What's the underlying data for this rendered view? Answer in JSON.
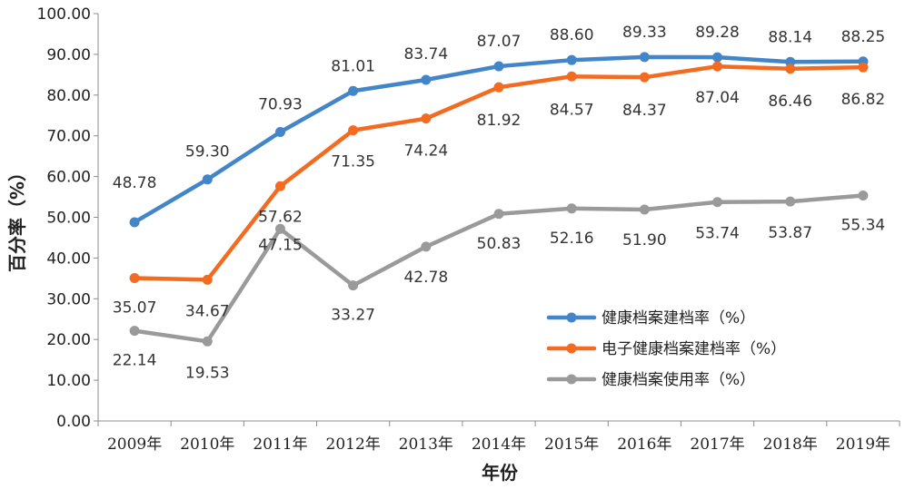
{
  "chart_data": {
    "type": "line",
    "xlabel": "年份",
    "ylabel": "百分率（%）",
    "ylim": [
      0,
      100
    ],
    "yticks": [
      "0.00",
      "10.00",
      "20.00",
      "30.00",
      "40.00",
      "50.00",
      "60.00",
      "70.00",
      "80.00",
      "90.00",
      "100.00"
    ],
    "categories": [
      "2009年",
      "2010年",
      "2011年",
      "2012年",
      "2013年",
      "2014年",
      "2015年",
      "2016年",
      "2017年",
      "2018年",
      "2019年"
    ],
    "legend_position": "bottom-right",
    "grid": false,
    "series": [
      {
        "name": "健康档案建档率（%）",
        "color": "#4285c9",
        "values": [
          48.78,
          59.3,
          70.93,
          81.01,
          83.74,
          87.07,
          88.6,
          89.33,
          89.28,
          88.14,
          88.25
        ],
        "labels": [
          "48.78",
          "59.30",
          "70.93",
          "81.01",
          "83.74",
          "87.07",
          "88.60",
          "89.33",
          "89.28",
          "88.14",
          "88.25"
        ]
      },
      {
        "name": "电子健康档案建档率（%）",
        "color": "#f26b21",
        "values": [
          35.07,
          34.67,
          57.62,
          71.35,
          74.24,
          81.92,
          84.57,
          84.37,
          87.04,
          86.46,
          86.82
        ],
        "labels": [
          "35.07",
          "34.67",
          "57.62",
          "71.35",
          "74.24",
          "81.92",
          "84.57",
          "84.37",
          "87.04",
          "86.46",
          "86.82"
        ]
      },
      {
        "name": "健康档案使用率（%）",
        "color": "#9a9a9a",
        "values": [
          22.14,
          19.53,
          47.15,
          33.27,
          42.78,
          50.83,
          52.16,
          51.9,
          53.74,
          53.87,
          55.34
        ],
        "labels": [
          "22.14",
          "19.53",
          "47.15",
          "33.27",
          "42.78",
          "50.83",
          "52.16",
          "51.90",
          "53.74",
          "53.87",
          "55.34"
        ]
      }
    ]
  }
}
